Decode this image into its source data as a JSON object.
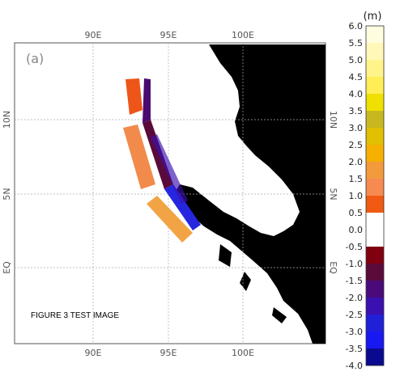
{
  "panel_label": "(a)",
  "caption": "FIGURE 3 TEST IMAGE",
  "units": "(m)",
  "lon_ticks": [
    "90E",
    "95E",
    "100E"
  ],
  "lat_ticks": [
    "10N",
    "5N",
    "EQ"
  ],
  "colorbar": {
    "tick_labels": [
      "6.0",
      "5.5",
      "5.0",
      "4.5",
      "4.0",
      "3.5",
      "3.0",
      "2.5",
      "2.0",
      "1.5",
      "1.0",
      "0.5",
      "0.0",
      "-0.5",
      "-1.0",
      "-1.5",
      "-2.0",
      "-2.5",
      "-3.0",
      "-3.5",
      "-4.0"
    ],
    "colors": [
      "#fffde0",
      "#fff8b8",
      "#fff48a",
      "#ffee55",
      "#f0e000",
      "#c8b820",
      "#e0c000",
      "#f5b000",
      "#f29a3c",
      "#f68a50",
      "#f05a12",
      "#ffffff",
      "#ffffff",
      "#800010",
      "#5a0b3a",
      "#4b0a7a",
      "#3a10b0",
      "#2020d8",
      "#1818f0",
      "#0a0a90"
    ]
  },
  "colors": {
    "land": "#000000",
    "ocean": "#ffffff",
    "grid": "#aaaaaa"
  }
}
